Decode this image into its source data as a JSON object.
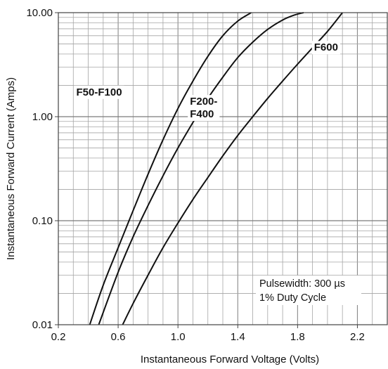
{
  "chart_data": {
    "type": "line",
    "xlabel": "Instantaneous Forward Voltage (Volts)",
    "ylabel": "Instantaneous Forward Current (Amps)",
    "xlim": [
      0.2,
      2.4
    ],
    "ylim": [
      0.01,
      10
    ],
    "yscale": "log",
    "grid": true,
    "xticks": [
      {
        "value": 0.2,
        "label": "0.2"
      },
      {
        "value": 0.6,
        "label": "0.6"
      },
      {
        "value": 1.0,
        "label": "1.0"
      },
      {
        "value": 1.4,
        "label": "1.4"
      },
      {
        "value": 1.8,
        "label": "1.8"
      },
      {
        "value": 2.2,
        "label": "2.2"
      }
    ],
    "yticks": [
      {
        "value": 0.01,
        "label": "0.01"
      },
      {
        "value": 0.1,
        "label": "0.10"
      },
      {
        "value": 1,
        "label": "1.00"
      },
      {
        "value": 10,
        "label": "10.00"
      }
    ],
    "series": [
      {
        "name": "F50-F100",
        "label_lines": [
          "F50-F100"
        ],
        "label_pos": [
          0.32,
          1.6
        ],
        "x": [
          0.41,
          0.5,
          0.6,
          0.7,
          0.8,
          0.9,
          1.0,
          1.1,
          1.2,
          1.3,
          1.4,
          1.49
        ],
        "y": [
          0.01,
          0.024,
          0.055,
          0.125,
          0.28,
          0.6,
          1.2,
          2.2,
          3.8,
          6.0,
          8.3,
          10
        ]
      },
      {
        "name": "F200-F400",
        "label_lines": [
          "F200-",
          "F400"
        ],
        "label_pos": [
          1.08,
          1.3
        ],
        "x": [
          0.47,
          0.6,
          0.7,
          0.8,
          0.9,
          1.0,
          1.1,
          1.2,
          1.3,
          1.4,
          1.5,
          1.6,
          1.7,
          1.78,
          1.84
        ],
        "y": [
          0.01,
          0.032,
          0.07,
          0.14,
          0.27,
          0.5,
          0.88,
          1.5,
          2.4,
          3.7,
          5.2,
          6.9,
          8.5,
          9.5,
          10
        ]
      },
      {
        "name": "F600",
        "label_lines": [
          "F600"
        ],
        "label_pos": [
          1.91,
          4.3
        ],
        "x": [
          0.63,
          0.7,
          0.8,
          0.9,
          1.0,
          1.1,
          1.2,
          1.3,
          1.4,
          1.5,
          1.6,
          1.7,
          1.8,
          1.9,
          2.0,
          2.1
        ],
        "y": [
          0.01,
          0.016,
          0.03,
          0.055,
          0.095,
          0.16,
          0.26,
          0.42,
          0.66,
          1.0,
          1.5,
          2.2,
          3.2,
          4.6,
          6.6,
          10
        ]
      }
    ],
    "annotations": [
      "Pulsewidth: 300 µs",
      "1% Duty Cycle"
    ]
  }
}
